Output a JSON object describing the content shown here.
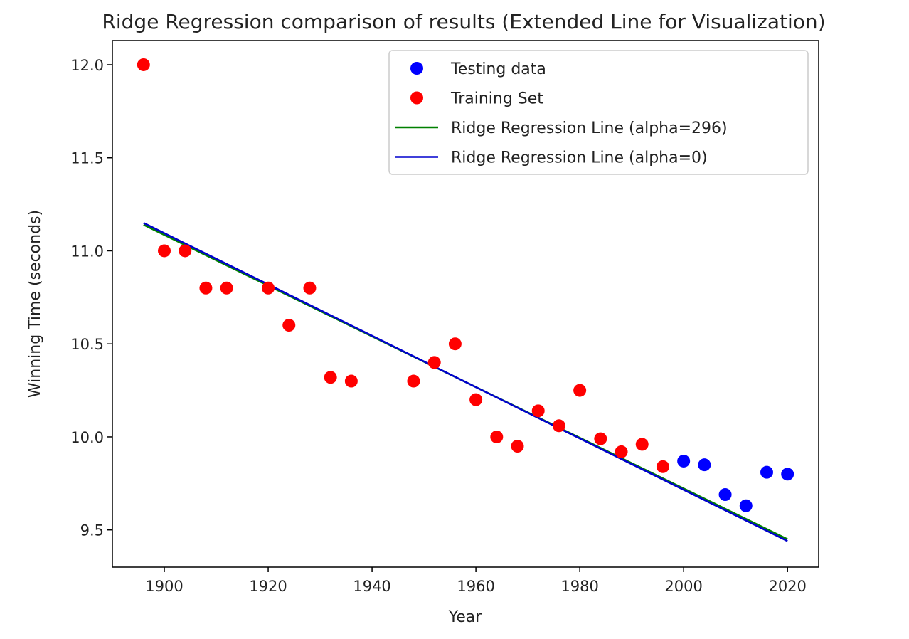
{
  "chart_data": {
    "type": "scatter",
    "title": "Ridge Regression comparison of results (Extended Line for Visualization)",
    "xlabel": "Year",
    "ylabel": "Winning Time (seconds)",
    "xlim": [
      1890,
      2026
    ],
    "ylim": [
      9.3,
      12.13
    ],
    "x_ticks": [
      1900,
      1920,
      1940,
      1960,
      1980,
      2000,
      2020
    ],
    "y_ticks": [
      9.5,
      10.0,
      10.5,
      11.0,
      11.5,
      12.0
    ],
    "x_tick_labels": [
      "1900",
      "1920",
      "1940",
      "1960",
      "1980",
      "2000",
      "2020"
    ],
    "y_tick_labels": [
      "9.5",
      "10.0",
      "10.5",
      "11.0",
      "11.5",
      "12.0"
    ],
    "grid": false,
    "legend_position": "top-right",
    "series": [
      {
        "name": "Testing data",
        "kind": "scatter",
        "color": "#0000ff",
        "x": [
          2000,
          2004,
          2008,
          2012,
          2016,
          2020
        ],
        "y": [
          9.87,
          9.85,
          9.69,
          9.63,
          9.81,
          9.8
        ]
      },
      {
        "name": "Training Set",
        "kind": "scatter",
        "color": "#ff0000",
        "x": [
          1896,
          1900,
          1904,
          1908,
          1912,
          1920,
          1924,
          1928,
          1932,
          1936,
          1948,
          1952,
          1956,
          1960,
          1964,
          1968,
          1972,
          1976,
          1980,
          1984,
          1988,
          1992,
          1996
        ],
        "y": [
          12.0,
          11.0,
          11.0,
          10.8,
          10.8,
          10.8,
          10.6,
          10.8,
          10.32,
          10.3,
          10.3,
          10.4,
          10.5,
          10.2,
          10.0,
          9.95,
          10.14,
          10.06,
          10.25,
          9.99,
          9.92,
          9.96,
          9.84
        ]
      },
      {
        "name": "Ridge Regression Line (alpha=296)",
        "kind": "line",
        "color": "#008000",
        "x": [
          1896,
          2020
        ],
        "y": [
          11.14,
          9.45
        ]
      },
      {
        "name": "Ridge Regression Line (alpha=0)",
        "kind": "line",
        "color": "#0000cd",
        "x": [
          1896,
          2020
        ],
        "y": [
          11.15,
          9.44
        ]
      }
    ]
  }
}
